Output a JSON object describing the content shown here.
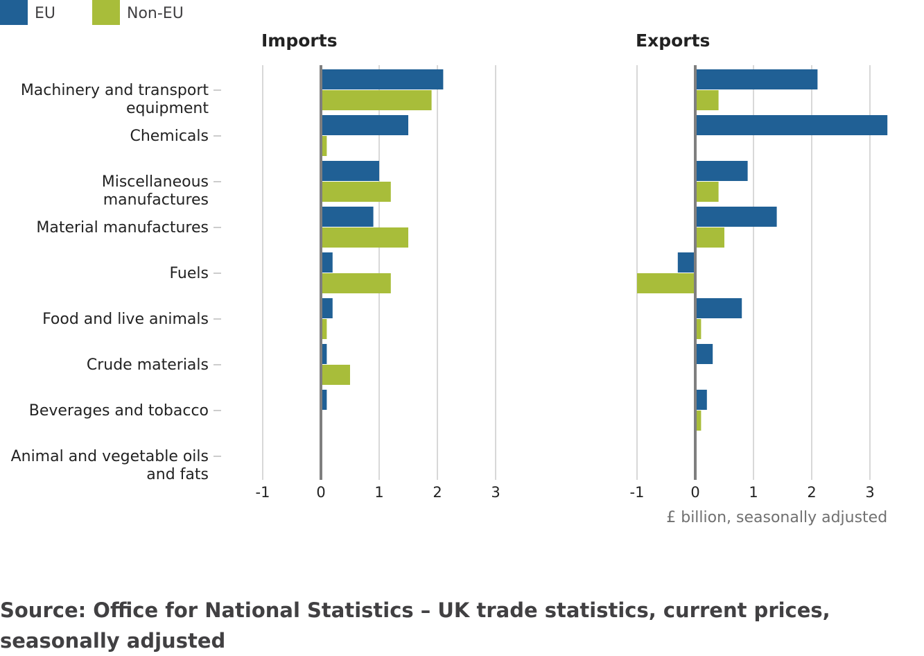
{
  "chart_data": {
    "type": "bar",
    "orientation": "horizontal",
    "legend": [
      {
        "name": "EU",
        "color": "#206095"
      },
      {
        "name": "Non-EU",
        "color": "#a8bd3a"
      }
    ],
    "categories": [
      [
        "Machinery and transport",
        "equipment"
      ],
      [
        "Chemicals"
      ],
      [
        "Miscellaneous",
        "manufactures"
      ],
      [
        "Material manufactures"
      ],
      [
        "Fuels"
      ],
      [
        "Food and live animals"
      ],
      [
        "Crude materials"
      ],
      [
        "Beverages and tobacco"
      ],
      [
        "Animal and vegetable oils",
        "and fats"
      ]
    ],
    "xlim": [
      -1,
      3.3
    ],
    "ticks": [
      -1,
      0,
      1,
      2,
      3
    ],
    "panels": [
      {
        "title": "Imports",
        "series": [
          {
            "name": "EU",
            "values": [
              2.1,
              1.5,
              1.0,
              0.9,
              0.2,
              0.2,
              0.1,
              0.1,
              0.0
            ]
          },
          {
            "name": "Non-EU",
            "values": [
              1.9,
              0.1,
              1.2,
              1.5,
              1.2,
              0.1,
              0.5,
              0.0,
              0.0
            ]
          }
        ]
      },
      {
        "title": "Exports",
        "series": [
          {
            "name": "EU",
            "values": [
              2.1,
              3.3,
              0.9,
              1.4,
              -0.3,
              0.8,
              0.3,
              0.2,
              0.0
            ]
          },
          {
            "name": "Non-EU",
            "values": [
              0.4,
              0.0,
              0.4,
              0.5,
              -1.0,
              0.1,
              0.0,
              0.1,
              0.0
            ]
          }
        ]
      }
    ],
    "unit_label": "£ billion, seasonally adjusted",
    "grid": true
  },
  "source": "Source: Office for National Statistics – UK trade statistics, current prices, seasonally adjusted"
}
